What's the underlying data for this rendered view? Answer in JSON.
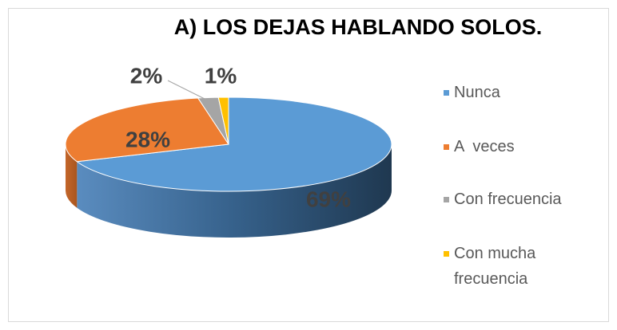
{
  "chart_data": {
    "type": "pie",
    "title": "A) LOS DEJAS HABLANDO SOLOS.",
    "categories": [
      "Nunca",
      "A  veces",
      "Con frecuencia",
      "Con mucha frecuencia"
    ],
    "values": [
      69,
      28,
      2,
      1
    ],
    "value_labels": [
      "69%",
      "28%",
      "2%",
      "1%"
    ],
    "colors": [
      "#5b9bd5",
      "#ed7d31",
      "#a5a5a5",
      "#ffc000"
    ],
    "legend": "right"
  }
}
